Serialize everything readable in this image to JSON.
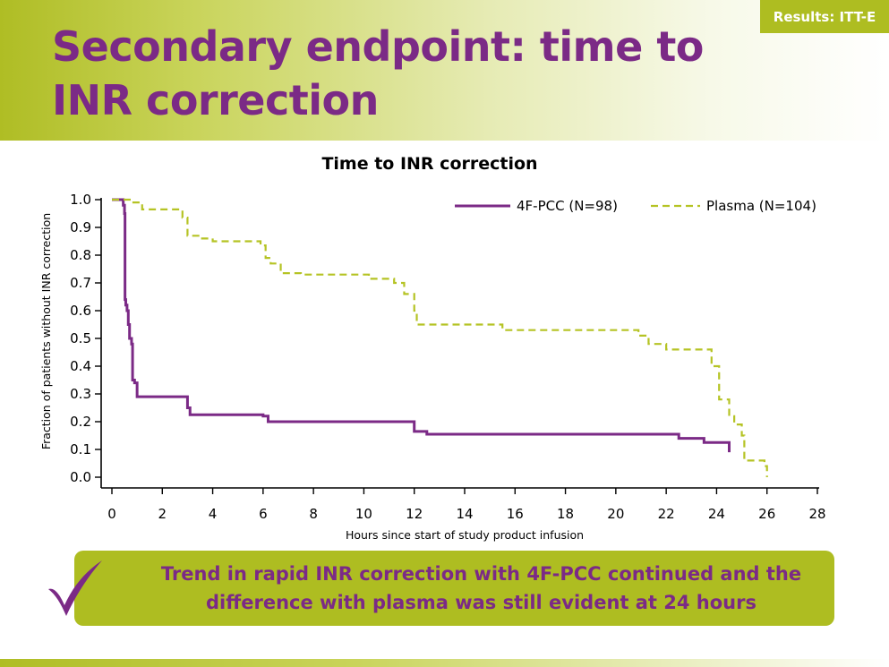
{
  "slide": {
    "results_tag": "Results: ITT-E",
    "title": "Secondary endpoint: time to INR correction",
    "callout": "Trend in rapid INR correction with 4F-PCC continued and the difference with plasma was still evident at 24 hours",
    "check_icon": "checkmark-icon",
    "colors": {
      "brand_green": "#aebd21",
      "brand_purple": "#7b2a86"
    }
  },
  "chart_data": {
    "type": "line",
    "title": "Time to INR correction",
    "xlabel": "Hours since start of study product infusion",
    "ylabel": "Fraction of patients without INR correction",
    "xlim": [
      0,
      28
    ],
    "ylim": [
      0,
      1.0
    ],
    "x_ticks": [
      "0",
      "2",
      "4",
      "6",
      "8",
      "10",
      "12",
      "14",
      "16",
      "18",
      "20",
      "22",
      "24",
      "26",
      "28"
    ],
    "y_ticks": [
      "0.0",
      "0.1",
      "0.2",
      "0.3",
      "0.4",
      "0.5",
      "0.6",
      "0.7",
      "0.8",
      "0.9",
      "1.0"
    ],
    "legend_position": "top-right",
    "step": true,
    "series": [
      {
        "name": "4F-PCC (N=98)",
        "color": "#7b2a86",
        "style": "solid",
        "points": [
          [
            0,
            1.0
          ],
          [
            0.35,
            1.0
          ],
          [
            0.45,
            0.98
          ],
          [
            0.5,
            0.95
          ],
          [
            0.52,
            0.64
          ],
          [
            0.55,
            0.62
          ],
          [
            0.6,
            0.6
          ],
          [
            0.65,
            0.55
          ],
          [
            0.7,
            0.5
          ],
          [
            0.78,
            0.48
          ],
          [
            0.82,
            0.35
          ],
          [
            0.9,
            0.34
          ],
          [
            1.0,
            0.29
          ],
          [
            3.0,
            0.25
          ],
          [
            3.1,
            0.225
          ],
          [
            6.0,
            0.22
          ],
          [
            6.2,
            0.2
          ],
          [
            12.0,
            0.165
          ],
          [
            12.5,
            0.155
          ],
          [
            22.5,
            0.14
          ],
          [
            23.5,
            0.125
          ],
          [
            24.5,
            0.09
          ]
        ]
      },
      {
        "name": "Plasma (N=104)",
        "color": "#b5c324",
        "style": "dashed",
        "points": [
          [
            0,
            1.0
          ],
          [
            0.8,
            0.99
          ],
          [
            1.2,
            0.965
          ],
          [
            2.8,
            0.935
          ],
          [
            3.0,
            0.87
          ],
          [
            3.5,
            0.86
          ],
          [
            4.0,
            0.85
          ],
          [
            5.9,
            0.835
          ],
          [
            6.1,
            0.79
          ],
          [
            6.3,
            0.77
          ],
          [
            6.7,
            0.735
          ],
          [
            7.5,
            0.73
          ],
          [
            10.2,
            0.715
          ],
          [
            11.2,
            0.7
          ],
          [
            11.6,
            0.66
          ],
          [
            12.0,
            0.6
          ],
          [
            12.1,
            0.55
          ],
          [
            15.5,
            0.53
          ],
          [
            20.9,
            0.51
          ],
          [
            21.3,
            0.48
          ],
          [
            22.0,
            0.46
          ],
          [
            23.8,
            0.4
          ],
          [
            24.1,
            0.28
          ],
          [
            24.5,
            0.22
          ],
          [
            24.7,
            0.19
          ],
          [
            25.0,
            0.15
          ],
          [
            25.1,
            0.06
          ],
          [
            25.9,
            0.04
          ],
          [
            26.0,
            0.0
          ]
        ]
      }
    ]
  }
}
